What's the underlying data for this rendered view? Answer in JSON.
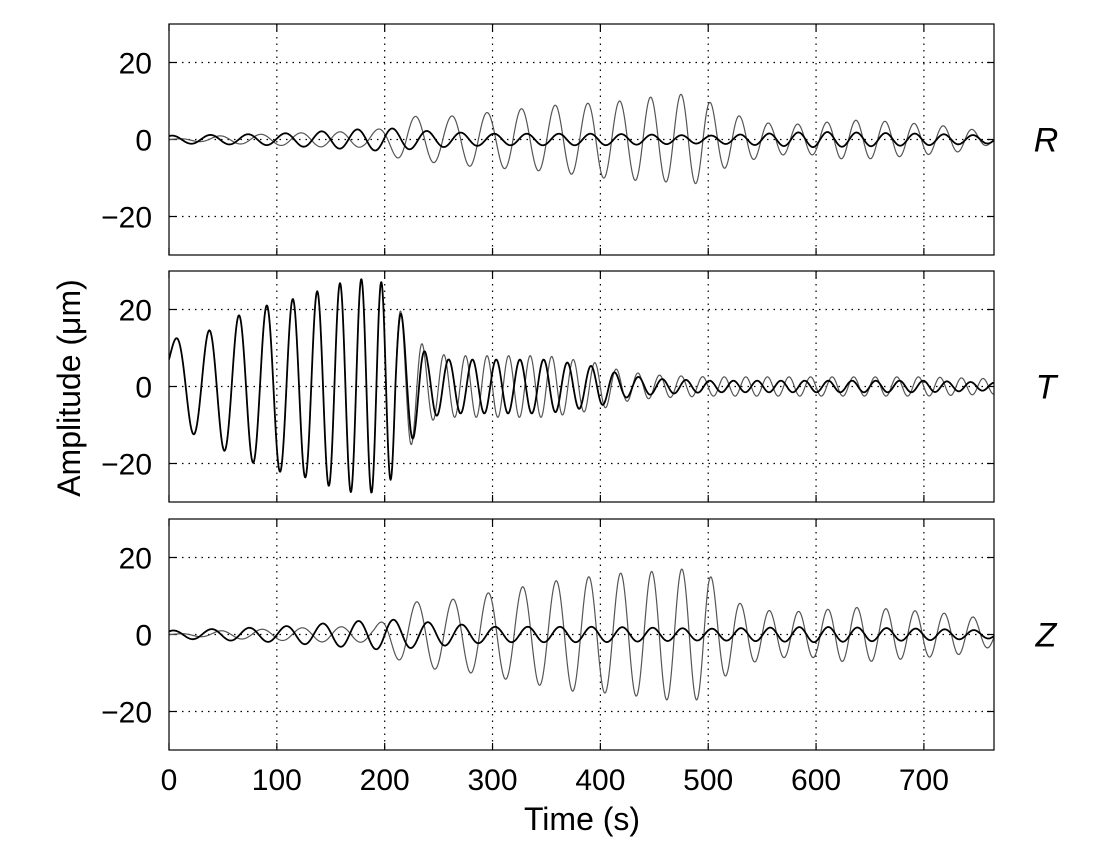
{
  "chart_data": {
    "type": "line",
    "xlabel": "Time (s)",
    "ylabel": "Amplitude (μm)",
    "xlim": [
      0,
      765
    ],
    "ylim": [
      -30,
      30
    ],
    "xticks": [
      0,
      100,
      200,
      300,
      400,
      500,
      600,
      700
    ],
    "xtick_labels": [
      "0",
      "100",
      "200",
      "300",
      "400",
      "500",
      "600",
      "700"
    ],
    "yticks": [
      20,
      0,
      -20
    ],
    "ytick_labels": [
      "20",
      "0",
      "−20"
    ],
    "grid": true,
    "colors": {
      "series_dark": "#000000",
      "series_light": "#555555"
    },
    "panels": [
      {
        "label": "R",
        "series": [
          {
            "color": "#555555",
            "x": [
              0,
              50,
              100,
              150,
              180,
              200,
              220,
              240,
              260,
              280,
              300,
              320,
              340,
              360,
              380,
              400,
              420,
              440,
              460,
              480,
              495,
              500,
              510,
              530,
              560,
              600,
              620,
              650,
              700,
              740,
              765
            ],
            "y": [
              0,
              1,
              1.5,
              2,
              2,
              3,
              6,
              6,
              6,
              7,
              7,
              8,
              8,
              9,
              9,
              10,
              10,
              11,
              11,
              12,
              11,
              10,
              8,
              6,
              4,
              4,
              5,
              5,
              4,
              3,
              1
            ]
          },
          {
            "color": "#000000",
            "x": [
              0,
              100,
              200,
              250,
              300,
              400,
              500,
              600,
              700,
              765
            ],
            "y": [
              1,
              1.5,
              3,
              2,
              1.5,
              1.5,
              1,
              2,
              1.5,
              1
            ]
          }
        ]
      },
      {
        "label": "T",
        "series": [
          {
            "color": "#000000",
            "x": [
              0,
              20,
              40,
              60,
              80,
              100,
              120,
              140,
              160,
              180,
              200,
              210,
              220,
              240,
              260,
              300,
              350,
              400,
              420,
              450,
              500,
              550,
              600,
              650,
              700,
              765
            ],
            "y": [
              7,
              12,
              15,
              18,
              20,
              22,
              23,
              25,
              27,
              28,
              27,
              22,
              16,
              8,
              7,
              7,
              7,
              5,
              3,
              2,
              1.5,
              1.5,
              1.5,
              1.5,
              1.5,
              1
            ]
          },
          {
            "color": "#555555",
            "x": [
              0,
              20,
              40,
              60,
              80,
              100,
              120,
              140,
              160,
              180,
              200,
              210,
              220,
              240,
              260,
              300,
              350,
              400,
              420,
              450,
              500,
              550,
              600,
              650,
              700,
              765
            ],
            "y": [
              7,
              12,
              15,
              18,
              20,
              22,
              23,
              25,
              27,
              28,
              27,
              22,
              17,
              9,
              8,
              8,
              8,
              6,
              4,
              3,
              2.5,
              2.5,
              2.5,
              2.5,
              2.5,
              2
            ]
          }
        ]
      },
      {
        "label": "Z",
        "series": [
          {
            "color": "#555555",
            "x": [
              0,
              50,
              100,
              150,
              190,
              200,
              220,
              240,
              260,
              280,
              300,
              320,
              340,
              360,
              380,
              400,
              420,
              440,
              460,
              480,
              495,
              500,
              510,
              530,
              560,
              600,
              620,
              650,
              700,
              740,
              765
            ],
            "y": [
              0,
              1,
              1.5,
              2,
              2,
              4,
              8,
              9,
              9,
              10,
              11,
              12,
              13,
              14,
              15,
              15,
              16,
              16,
              17,
              17,
              17,
              16,
              12,
              8,
              6,
              6,
              7,
              7,
              6,
              5,
              3
            ]
          },
          {
            "color": "#000000",
            "x": [
              0,
              100,
              200,
              250,
              300,
              400,
              500,
              600,
              700,
              765
            ],
            "y": [
              1,
              2,
              4,
              3,
              2,
              2,
              1.5,
              2,
              1.5,
              1
            ]
          }
        ]
      }
    ]
  }
}
